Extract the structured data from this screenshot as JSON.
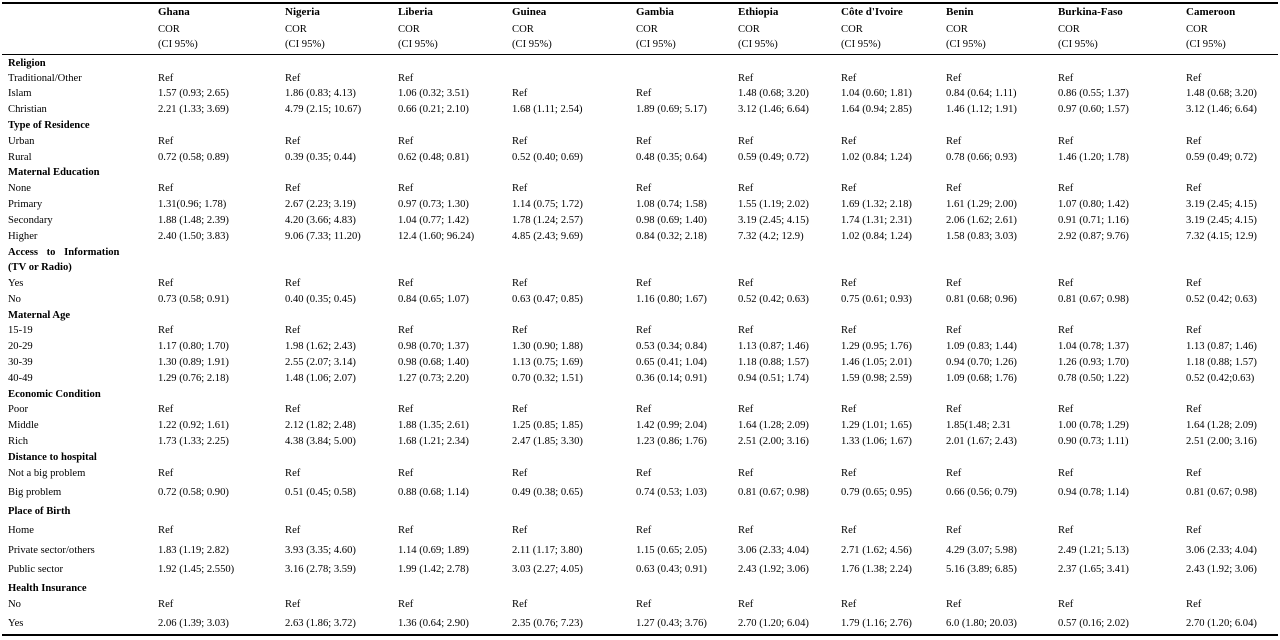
{
  "columns": [
    "Ghana",
    "Nigeria",
    "Liberia",
    "Guinea",
    "Gambia",
    "Ethiopia",
    "Côte d'Ivoire",
    "Benin",
    "Burkina-Faso",
    "Cameroon"
  ],
  "subheader": {
    "line1": "COR",
    "line2": "(CI 95%)"
  },
  "rows": [
    {
      "type": "section",
      "label": "Religion"
    },
    {
      "type": "data",
      "label": "Traditional/Other",
      "values": [
        "Ref",
        "Ref",
        "Ref",
        "",
        "",
        "Ref",
        "Ref",
        "Ref",
        "Ref",
        "Ref"
      ]
    },
    {
      "type": "data",
      "label": "Islam",
      "values": [
        "1.57 (0.93; 2.65)",
        "1.86 (0.83; 4.13)",
        "1.06 (0.32; 3.51)",
        "Ref",
        "Ref",
        "1.48 (0.68; 3.20)",
        "1.04 (0.60; 1.81)",
        "0.84 (0.64; 1.11)",
        "0.86 (0.55; 1.37)",
        "1.48 (0.68; 3.20)"
      ]
    },
    {
      "type": "data",
      "label": "Christian",
      "values": [
        "2.21 (1.33; 3.69)",
        "4.79 (2.15; 10.67)",
        "0.66 (0.21; 2.10)",
        "1.68 (1.11; 2.54)",
        "1.89 (0.69; 5.17)",
        "3.12 (1.46; 6.64)",
        "1.64 (0.94; 2.85)",
        "1.46 (1.12; 1.91)",
        "0.97 (0.60; 1.57)",
        "3.12 (1.46; 6.64)"
      ]
    },
    {
      "type": "section",
      "label": "Type of Residence"
    },
    {
      "type": "data",
      "label": "Urban",
      "values": [
        "Ref",
        "Ref",
        "Ref",
        "Ref",
        "Ref",
        "Ref",
        "Ref",
        "Ref",
        "Ref",
        "Ref"
      ]
    },
    {
      "type": "data",
      "label": "Rural",
      "values": [
        "0.72 (0.58; 0.89)",
        "0.39 (0.35; 0.44)",
        "0.62 (0.48; 0.81)",
        "0.52 (0.40; 0.69)",
        "0.48 (0.35; 0.64)",
        "0.59 (0.49; 0.72)",
        "1.02 (0.84; 1.24)",
        "0.78 (0.66; 0.93)",
        "1.46 (1.20; 1.78)",
        "0.59 (0.49; 0.72)"
      ]
    },
    {
      "type": "section",
      "label": "Maternal Education"
    },
    {
      "type": "data",
      "label": "None",
      "values": [
        "Ref",
        "Ref",
        "Ref",
        "Ref",
        "Ref",
        "Ref",
        "Ref",
        "Ref",
        "Ref",
        "Ref"
      ]
    },
    {
      "type": "data",
      "label": "Primary",
      "values": [
        "1.31(0.96; 1.78)",
        "2.67 (2.23; 3.19)",
        "0.97 (0.73; 1.30)",
        "1.14 (0.75; 1.72)",
        "1.08 (0.74; 1.58)",
        "1.55 (1.19; 2.02)",
        "1.69 (1.32; 2.18)",
        "1.61 (1.29; 2.00)",
        "1.07 (0.80; 1.42)",
        "3.19 (2.45; 4.15)"
      ]
    },
    {
      "type": "data",
      "label": "Secondary",
      "values": [
        "1.88 (1.48; 2.39)",
        "4.20 (3.66; 4.83)",
        "1.04 (0.77; 1.42)",
        "1.78 (1.24; 2.57)",
        "0.98 (0.69; 1.40)",
        "3.19 (2.45; 4.15)",
        "1.74 (1.31; 2.31)",
        "2.06 (1.62; 2.61)",
        "0.91 (0.71; 1.16)",
        "3.19 (2.45; 4.15)"
      ]
    },
    {
      "type": "data",
      "label": "Higher",
      "values": [
        "2.40 (1.50; 3.83)",
        "9.06 (7.33; 11.20)",
        "12.4 (1.60; 96.24)",
        "4.85 (2.43; 9.69)",
        "0.84 (0.32; 2.18)",
        "7.32 (4.2; 12.9)",
        "1.02 (0.84; 1.24)",
        "1.58 (0.83; 3.03)",
        "2.92 (0.87; 9.76)",
        "7.32 (4.15; 12.9)"
      ]
    },
    {
      "type": "section2",
      "label": "Access to Information",
      "label2": "(TV or Radio)"
    },
    {
      "type": "data",
      "label": "Yes",
      "values": [
        "Ref",
        "Ref",
        "Ref",
        "Ref",
        "Ref",
        "Ref",
        "Ref",
        "Ref",
        "Ref",
        "Ref"
      ]
    },
    {
      "type": "data",
      "label": "No",
      "values": [
        "0.73 (0.58; 0.91)",
        "0.40 (0.35; 0.45)",
        "0.84 (0.65; 1.07)",
        "0.63 (0.47; 0.85)",
        "1.16 (0.80; 1.67)",
        "0.52 (0.42; 0.63)",
        "0.75 (0.61; 0.93)",
        "0.81 (0.68; 0.96)",
        "0.81 (0.67; 0.98)",
        "0.52 (0.42; 0.63)"
      ]
    },
    {
      "type": "section",
      "label": "Maternal Age"
    },
    {
      "type": "data",
      "label": "15-19",
      "values": [
        "Ref",
        "Ref",
        "Ref",
        "Ref",
        "Ref",
        "Ref",
        "Ref",
        "Ref",
        "Ref",
        "Ref"
      ]
    },
    {
      "type": "data",
      "label": "20-29",
      "values": [
        "1.17 (0.80; 1.70)",
        "1.98 (1.62; 2.43)",
        "0.98 (0.70; 1.37)",
        "1.30 (0.90; 1.88)",
        "0.53 (0.34; 0.84)",
        "1.13 (0.87; 1.46)",
        "1.29 (0.95; 1.76)",
        "1.09 (0.83; 1.44)",
        "1.04 (0.78; 1.37)",
        "1.13 (0.87; 1.46)"
      ]
    },
    {
      "type": "data",
      "label": "30-39",
      "values": [
        "1.30 (0.89; 1.91)",
        "2.55 (2.07; 3.14)",
        "0.98 (0.68; 1.40)",
        "1.13 (0.75; 1.69)",
        "0.65 (0.41; 1.04)",
        "1.18 (0.88; 1.57)",
        "1.46 (1.05; 2.01)",
        "0.94 (0.70; 1.26)",
        "1.26 (0.93; 1.70)",
        "1.18 (0.88; 1.57)"
      ]
    },
    {
      "type": "data",
      "label": "40-49",
      "values": [
        "1.29 (0.76; 2.18)",
        "1.48 (1.06; 2.07)",
        "1.27 (0.73; 2.20)",
        "0.70 (0.32; 1.51)",
        "0.36 (0.14; 0.91)",
        "0.94 (0.51; 1.74)",
        "1.59 (0.98; 2.59)",
        "1.09 (0.68; 1.76)",
        "0.78 (0.50; 1.22)",
        "0.52 (0.42;0.63)"
      ]
    },
    {
      "type": "section",
      "label": "Economic Condition"
    },
    {
      "type": "data",
      "label": "Poor",
      "values": [
        "Ref",
        "Ref",
        "Ref",
        "Ref",
        "Ref",
        "Ref",
        "Ref",
        "Ref",
        "Ref",
        "Ref"
      ]
    },
    {
      "type": "data",
      "label": "Middle",
      "values": [
        "1.22 (0.92; 1.61)",
        "2.12 (1.82; 2.48)",
        "1.88 (1.35;  2.61)",
        "1.25 (0.85; 1.85)",
        "1.42 (0.99; 2.04)",
        "1.64 (1.28; 2.09)",
        "1.29 (1.01; 1.65)",
        "1.85(1.48; 2.31",
        "1.00 (0.78; 1.29)",
        "1.64 (1.28; 2.09)"
      ]
    },
    {
      "type": "data",
      "label": "Rich",
      "values": [
        "1.73 (1.33; 2.25)",
        "4.38 (3.84; 5.00)",
        "1.68 (1.21; 2.34)",
        "2.47 (1.85; 3.30)",
        "1.23 (0.86; 1.76)",
        "2.51 (2.00; 3.16)",
        "1.33 (1.06; 1.67)",
        "2.01 (1.67; 2.43)",
        "0.90 (0.73; 1.11)",
        "2.51 (2.00; 3.16)"
      ]
    },
    {
      "type": "section",
      "label": "Distance to hospital"
    },
    {
      "type": "data",
      "label": "Not a big problem",
      "values": [
        "Ref",
        "Ref",
        "Ref",
        "Ref",
        "Ref",
        "Ref",
        "Ref",
        "Ref",
        "Ref",
        "Ref"
      ]
    },
    {
      "type": "data",
      "label": "Big problem",
      "values": [
        "0.72 (0.58; 0.90)",
        "0.51 (0.45; 0.58)",
        "0.88 (0.68; 1.14)",
        "0.49 (0.38; 0.65)",
        "0.74 (0.53; 1.03)",
        "0.81 (0.67; 0.98)",
        "0.79 (0.65; 0.95)",
        "0.66 (0.56; 0.79)",
        "0.94 (0.78; 1.14)",
        "0.81 (0.67; 0.98)"
      ]
    },
    {
      "type": "section",
      "label": "Place of Birth"
    },
    {
      "type": "data",
      "label": "Home",
      "values": [
        "Ref",
        "Ref",
        "Ref",
        "Ref",
        "Ref",
        "Ref",
        "Ref",
        "Ref",
        "Ref",
        "Ref"
      ]
    },
    {
      "type": "data",
      "label": "Private sector/others",
      "values": [
        "1.83 (1.19; 2.82)",
        "3.93 (3.35; 4.60)",
        "1.14 (0.69; 1.89)",
        "2.11 (1.17; 3.80)",
        "1.15 (0.65; 2.05)",
        "3.06 (2.33; 4.04)",
        "2.71 (1.62; 4.56)",
        "4.29 (3.07; 5.98)",
        "2.49 (1.21; 5.13)",
        "3.06 (2.33; 4.04)"
      ]
    },
    {
      "type": "data",
      "label": "Public sector",
      "values": [
        "1.92 (1.45; 2.550)",
        "3.16 (2.78; 3.59)",
        "1.99 (1.42; 2.78)",
        "3.03 (2.27; 4.05)",
        "0.63 (0.43; 0.91)",
        "2.43 (1.92; 3.06)",
        "1.76 (1.38; 2.24)",
        "5.16 (3.89; 6.85)",
        "2.37 (1.65; 3.41)",
        "2.43 (1.92; 3.06)"
      ]
    },
    {
      "type": "section",
      "label": "Health Insurance"
    },
    {
      "type": "data",
      "label": "No",
      "values": [
        "Ref",
        "Ref",
        "Ref",
        "Ref",
        "Ref",
        "Ref",
        "Ref",
        "Ref",
        "Ref",
        "Ref"
      ]
    },
    {
      "type": "data",
      "label": "Yes",
      "values": [
        "2.06 (1.39; 3.03)",
        "2.63 (1.86; 3.72)",
        "1.36 (0.64; 2.90)",
        "2.35 (0.76; 7.23)",
        "1.27 (0.43; 3.76)",
        "2.70 (1.20; 6.04)",
        "1.79 (1.16; 2.76)",
        "6.0 (1.80; 20.03)",
        "0.57 (0.16; 2.02)",
        "2.70 (1.20; 6.04)"
      ]
    }
  ]
}
